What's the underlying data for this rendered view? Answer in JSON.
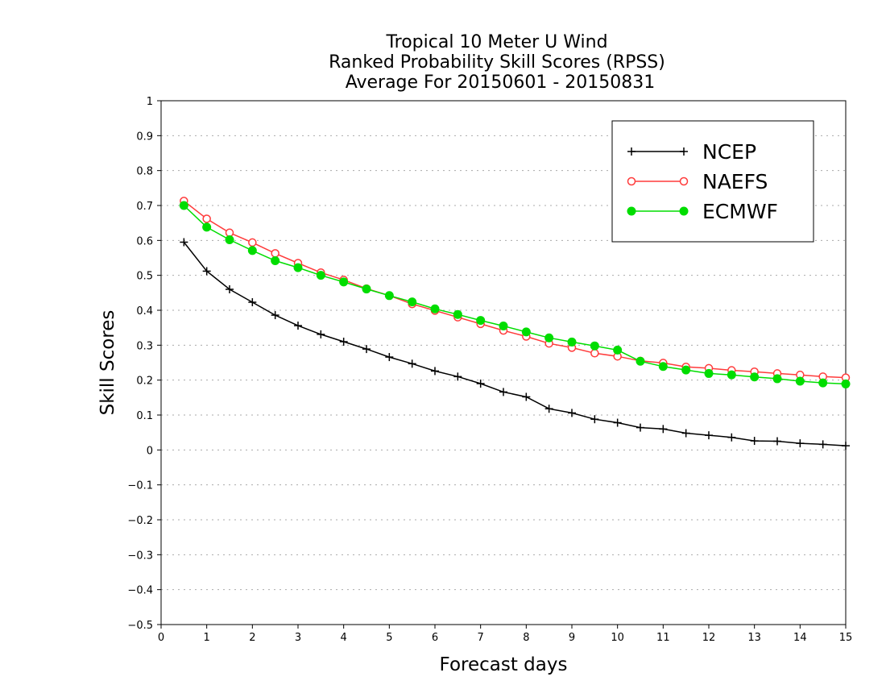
{
  "chart_data": {
    "type": "line",
    "title": [
      "Tropical 10 Meter U Wind",
      "Ranked Probability Skill Scores (RPSS)",
      "Average For 20150601 - 20150831"
    ],
    "xlabel": "Forecast days",
    "ylabel": "Skill Scores",
    "xlim": [
      0,
      15
    ],
    "ylim": [
      -0.5,
      1
    ],
    "xticks": [
      "0",
      "1",
      "2",
      "3",
      "4",
      "5",
      "6",
      "7",
      "8",
      "9",
      "10",
      "11",
      "12",
      "13",
      "14",
      "15"
    ],
    "yticks": [
      "1",
      "0.9",
      "0.8",
      "0.7",
      "0.6",
      "0.5",
      "0.4",
      "0.3",
      "0.2",
      "0.1",
      "0",
      "−0.1",
      "−0.2",
      "−0.3",
      "−0.4",
      "−0.5"
    ],
    "grid": "horizontal-dotted",
    "legend_position": "top-right",
    "x": [
      0.5,
      1,
      1.5,
      2,
      2.5,
      3,
      3.5,
      4,
      4.5,
      5,
      5.5,
      6,
      6.5,
      7,
      7.5,
      8,
      8.5,
      9,
      9.5,
      10,
      10.5,
      11,
      11.5,
      12,
      12.5,
      13,
      13.5,
      14,
      14.5,
      15
    ],
    "series": [
      {
        "name": "NCEP",
        "color": "#000000",
        "marker": "plus",
        "values": [
          0.595,
          0.512,
          0.46,
          0.423,
          0.386,
          0.356,
          0.331,
          0.31,
          0.289,
          0.266,
          0.247,
          0.226,
          0.21,
          0.19,
          0.166,
          0.152,
          0.118,
          0.106,
          0.088,
          0.078,
          0.064,
          0.06,
          0.048,
          0.042,
          0.036,
          0.026,
          0.025,
          0.019,
          0.016,
          0.012
        ]
      },
      {
        "name": "NAEFS",
        "color": "#ff3b3b",
        "marker": "open-circle",
        "values": [
          0.713,
          0.662,
          0.622,
          0.594,
          0.563,
          0.535,
          0.508,
          0.487,
          0.462,
          0.442,
          0.418,
          0.399,
          0.38,
          0.361,
          0.342,
          0.325,
          0.305,
          0.293,
          0.277,
          0.268,
          0.255,
          0.249,
          0.238,
          0.234,
          0.228,
          0.224,
          0.219,
          0.215,
          0.21,
          0.207
        ]
      },
      {
        "name": "ECMWF",
        "color": "#00dd00",
        "marker": "filled-circle",
        "values": [
          0.7,
          0.638,
          0.602,
          0.571,
          0.542,
          0.522,
          0.5,
          0.481,
          0.461,
          0.442,
          0.424,
          0.404,
          0.388,
          0.371,
          0.355,
          0.338,
          0.321,
          0.309,
          0.298,
          0.286,
          0.254,
          0.239,
          0.229,
          0.219,
          0.215,
          0.209,
          0.204,
          0.197,
          0.192,
          0.189
        ]
      }
    ]
  }
}
